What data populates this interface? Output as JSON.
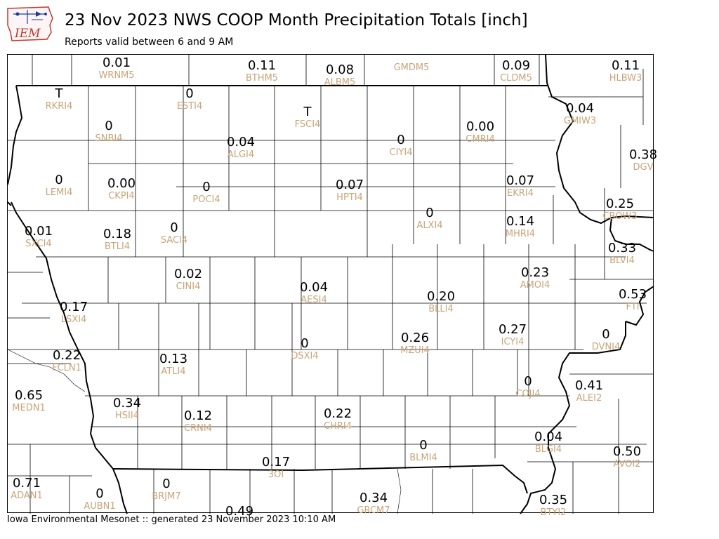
{
  "header": {
    "logo_text": "IEM",
    "title": "23 Nov 2023 NWS COOP Month Precipitation Totals [inch]",
    "subtitle": "Reports valid between 6 and 9 AM"
  },
  "footer": {
    "text": "Iowa Environmental Mesonet :: generated 23 November 2023 10:10 AM"
  },
  "colors": {
    "value_text": "#000000",
    "station_id_text": "#c8a478",
    "county_lines": "#000000",
    "logo_red": "#c0392b",
    "logo_blue": "#1f3a9c"
  },
  "stations": [
    {
      "value": "0.01",
      "id": "WRNM5"
    },
    {
      "value": "0.11",
      "id": "BTHM5"
    },
    {
      "value": "0.08",
      "id": "ALBM5"
    },
    {
      "value": "",
      "id": "GMDM5"
    },
    {
      "value": "0.09",
      "id": "CLDM5"
    },
    {
      "value": "0.11",
      "id": "HLBW3"
    },
    {
      "value": "T",
      "id": "RKRI4"
    },
    {
      "value": "0",
      "id": "ESTI4"
    },
    {
      "value": "T",
      "id": "FSCI4"
    },
    {
      "value": "0.04",
      "id": "GMIW3"
    },
    {
      "value": "0",
      "id": "SNBI4"
    },
    {
      "value": "0.04",
      "id": "ALGI4"
    },
    {
      "value": "0",
      "id": "CIYI4"
    },
    {
      "value": "0.00",
      "id": "CMRI4"
    },
    {
      "value": "0.38",
      "id": "DGV"
    },
    {
      "value": "0",
      "id": "LEMI4"
    },
    {
      "value": "0.00",
      "id": "CKPI4"
    },
    {
      "value": "0",
      "id": "POCI4"
    },
    {
      "value": "0.07",
      "id": "HPTI4"
    },
    {
      "value": "0.07",
      "id": "EKRI4"
    },
    {
      "value": "0.25",
      "id": "CBOW3"
    },
    {
      "value": "0",
      "id": "ALXI4"
    },
    {
      "value": "0.01",
      "id": "SXCI4"
    },
    {
      "value": "0.18",
      "id": "BTLI4"
    },
    {
      "value": "0",
      "id": "SACI4"
    },
    {
      "value": "0.14",
      "id": "MHRI4"
    },
    {
      "value": "0.33",
      "id": "BLVI4"
    },
    {
      "value": "0.02",
      "id": "CINI4"
    },
    {
      "value": "0.23",
      "id": "AMOI4"
    },
    {
      "value": "0.04",
      "id": "AESI4"
    },
    {
      "value": "0.53",
      "id": "FTI"
    },
    {
      "value": "0.17",
      "id": "LSXI4"
    },
    {
      "value": "0.20",
      "id": "BLLI4"
    },
    {
      "value": "0.27",
      "id": "ICYI4"
    },
    {
      "value": "0",
      "id": "DVNI4"
    },
    {
      "value": "0",
      "id": "DSXI4"
    },
    {
      "value": "0.26",
      "id": "MZUI4"
    },
    {
      "value": "0.22",
      "id": "FCLN1"
    },
    {
      "value": "0.13",
      "id": "ATLI4"
    },
    {
      "value": "0",
      "id": "COJI4"
    },
    {
      "value": "0.41",
      "id": "ALEI2"
    },
    {
      "value": "0.65",
      "id": "MEDN1"
    },
    {
      "value": "0.34",
      "id": "HSII4"
    },
    {
      "value": "0.12",
      "id": "CRNI4"
    },
    {
      "value": "0.22",
      "id": "CHRI4"
    },
    {
      "value": "0",
      "id": "BLMI4"
    },
    {
      "value": "0.04",
      "id": "BLGI4"
    },
    {
      "value": "0.50",
      "id": "AVOI2"
    },
    {
      "value": "0.17",
      "id": "3OI"
    },
    {
      "value": "0.71",
      "id": "ADAN1"
    },
    {
      "value": "0",
      "id": "AUBN1"
    },
    {
      "value": "0",
      "id": "BRJM7"
    },
    {
      "value": "0.34",
      "id": "GRCM7"
    },
    {
      "value": "0.35",
      "id": "BTYI2"
    },
    {
      "value": "0.49",
      "id": ""
    }
  ]
}
